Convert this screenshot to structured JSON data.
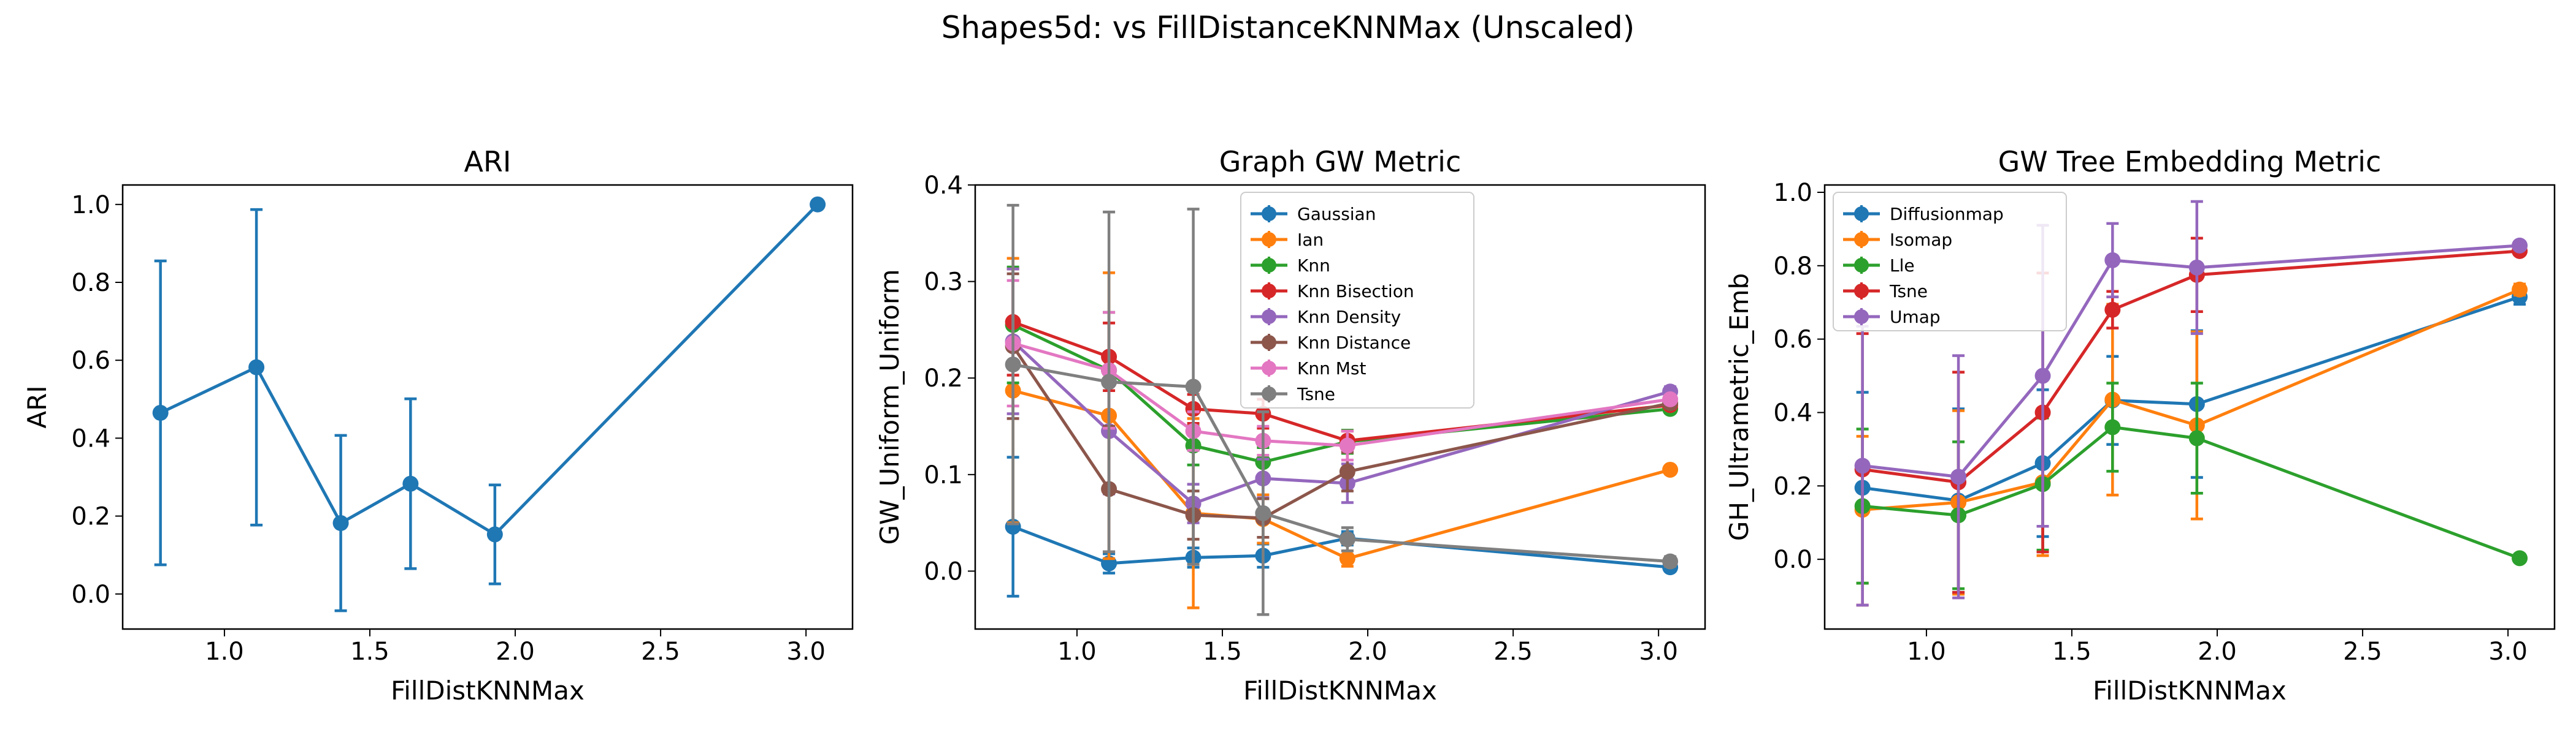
{
  "suptitle": "Shapes5d: vs FillDistanceKNNMax (Unscaled)",
  "chart_data": [
    {
      "type": "line",
      "title": "ARI",
      "xlabel": "FillDistKNNMax",
      "ylabel": "ARI",
      "xlim": [
        0.65,
        3.16
      ],
      "ylim": [
        -0.09,
        1.05
      ],
      "xticks": [
        1.0,
        1.5,
        2.0,
        2.5,
        3.0
      ],
      "yticks": [
        0.0,
        0.2,
        0.4,
        0.6,
        0.8,
        1.0
      ],
      "tick_decimals": 1,
      "legend": null,
      "series": [
        {
          "color": "#1f77b4",
          "x": [
            0.78,
            1.11,
            1.4,
            1.64,
            1.93,
            3.04
          ],
          "y": [
            0.465,
            0.582,
            0.182,
            0.283,
            0.153,
            1.0
          ],
          "err": [
            0.39,
            0.405,
            0.225,
            0.218,
            0.127,
            0.0
          ]
        }
      ]
    },
    {
      "type": "line",
      "title": "Graph GW Metric",
      "xlabel": "FillDistKNNMax",
      "ylabel": "GW_Uniform_Uniform",
      "xlim": [
        0.65,
        3.16
      ],
      "ylim": [
        -0.06,
        0.4
      ],
      "xticks": [
        1.0,
        1.5,
        2.0,
        2.5,
        3.0
      ],
      "yticks": [
        0.0,
        0.1,
        0.2,
        0.3,
        0.4
      ],
      "tick_decimals": 1,
      "legend": "upper-center",
      "series": [
        {
          "name": "Gaussian",
          "color": "#1f77b4",
          "x": [
            0.78,
            1.11,
            1.4,
            1.64,
            1.93,
            3.04
          ],
          "y": [
            0.046,
            0.008,
            0.014,
            0.016,
            0.034,
            0.004
          ],
          "err": [
            0.072,
            0.01,
            0.01,
            0.012,
            0.007,
            0.004
          ]
        },
        {
          "name": "Ian",
          "color": "#ff7f0e",
          "x": [
            0.78,
            1.11,
            1.4,
            1.64,
            1.93,
            3.04
          ],
          "y": [
            0.187,
            0.161,
            0.06,
            0.054,
            0.013,
            0.105
          ],
          "err": [
            0.137,
            0.148,
            0.098,
            0.025,
            0.008,
            0.003
          ]
        },
        {
          "name": "Knn",
          "color": "#2ca02c",
          "x": [
            0.78,
            1.11,
            1.4,
            1.64,
            1.93,
            3.04
          ],
          "y": [
            0.255,
            0.208,
            0.13,
            0.113,
            0.134,
            0.168
          ],
          "err": [
            0.06,
            0.06,
            0.02,
            0.015,
            0.012,
            0.004
          ]
        },
        {
          "name": "Knn Bisection",
          "color": "#d62728",
          "x": [
            0.78,
            1.11,
            1.4,
            1.64,
            1.93,
            3.04
          ],
          "y": [
            0.258,
            0.222,
            0.168,
            0.163,
            0.135,
            0.172
          ],
          "err": [
            0.055,
            0.035,
            0.015,
            0.015,
            0.01,
            0.004
          ]
        },
        {
          "name": "Knn Density",
          "color": "#9467bd",
          "x": [
            0.78,
            1.11,
            1.4,
            1.64,
            1.93,
            3.04
          ],
          "y": [
            0.238,
            0.145,
            0.07,
            0.096,
            0.091,
            0.186
          ],
          "err": [
            0.075,
            0.065,
            0.02,
            0.02,
            0.02,
            0.005
          ]
        },
        {
          "name": "Knn Distance",
          "color": "#8c564b",
          "x": [
            0.78,
            1.11,
            1.4,
            1.64,
            1.93,
            3.04
          ],
          "y": [
            0.233,
            0.085,
            0.058,
            0.055,
            0.103,
            0.174
          ],
          "err": [
            0.075,
            0.065,
            0.025,
            0.02,
            0.02,
            0.005
          ]
        },
        {
          "name": "Knn Mst",
          "color": "#e377c2",
          "x": [
            0.78,
            1.11,
            1.4,
            1.64,
            1.93,
            3.04
          ],
          "y": [
            0.236,
            0.208,
            0.145,
            0.135,
            0.13,
            0.178
          ],
          "err": [
            0.065,
            0.06,
            0.02,
            0.015,
            0.015,
            0.004
          ]
        },
        {
          "name": "Tsne",
          "color": "#7f7f7f",
          "x": [
            0.78,
            1.11,
            1.4,
            1.64,
            1.93,
            3.04
          ],
          "y": [
            0.214,
            0.196,
            0.191,
            0.06,
            0.033,
            0.01
          ],
          "err": [
            0.165,
            0.176,
            0.184,
            0.105,
            0.012,
            0.005
          ]
        }
      ]
    },
    {
      "type": "line",
      "title": "GW Tree Embedding Metric",
      "xlabel": "FillDistKNNMax",
      "ylabel": "GH_Ultrametric_Emb",
      "xlim": [
        0.65,
        3.16
      ],
      "ylim": [
        -0.19,
        1.02
      ],
      "xticks": [
        1.0,
        1.5,
        2.0,
        2.5,
        3.0
      ],
      "yticks": [
        0.0,
        0.2,
        0.4,
        0.6,
        0.8,
        1.0
      ],
      "tick_decimals": 1,
      "legend": "upper-left",
      "series": [
        {
          "name": "Diffusionmap",
          "color": "#1f77b4",
          "x": [
            0.78,
            1.11,
            1.4,
            1.64,
            1.93,
            3.04
          ],
          "y": [
            0.195,
            0.16,
            0.262,
            0.433,
            0.423,
            0.715
          ],
          "err": [
            0.26,
            0.25,
            0.2,
            0.12,
            0.2,
            0.02
          ]
        },
        {
          "name": "Isomap",
          "color": "#ff7f0e",
          "x": [
            0.78,
            1.11,
            1.4,
            1.64,
            1.93,
            3.04
          ],
          "y": [
            0.135,
            0.155,
            0.21,
            0.435,
            0.365,
            0.735
          ],
          "err": [
            0.2,
            0.25,
            0.2,
            0.26,
            0.255,
            0.015
          ]
        },
        {
          "name": "Lle",
          "color": "#2ca02c",
          "x": [
            0.78,
            1.11,
            1.4,
            1.64,
            1.93,
            3.04
          ],
          "y": [
            0.145,
            0.12,
            0.205,
            0.36,
            0.33,
            0.003
          ],
          "err": [
            0.21,
            0.2,
            0.18,
            0.12,
            0.15,
            0.003
          ]
        },
        {
          "name": "Tsne",
          "color": "#d62728",
          "x": [
            0.78,
            1.11,
            1.4,
            1.64,
            1.93,
            3.04
          ],
          "y": [
            0.245,
            0.21,
            0.4,
            0.68,
            0.775,
            0.84
          ],
          "err": [
            0.37,
            0.3,
            0.38,
            0.05,
            0.1,
            0.01
          ]
        },
        {
          "name": "Umap",
          "color": "#9467bd",
          "x": [
            0.78,
            1.11,
            1.4,
            1.64,
            1.93,
            3.04
          ],
          "y": [
            0.255,
            0.225,
            0.5,
            0.815,
            0.795,
            0.855
          ],
          "err": [
            0.38,
            0.33,
            0.41,
            0.1,
            0.18,
            0.01
          ]
        }
      ]
    }
  ]
}
